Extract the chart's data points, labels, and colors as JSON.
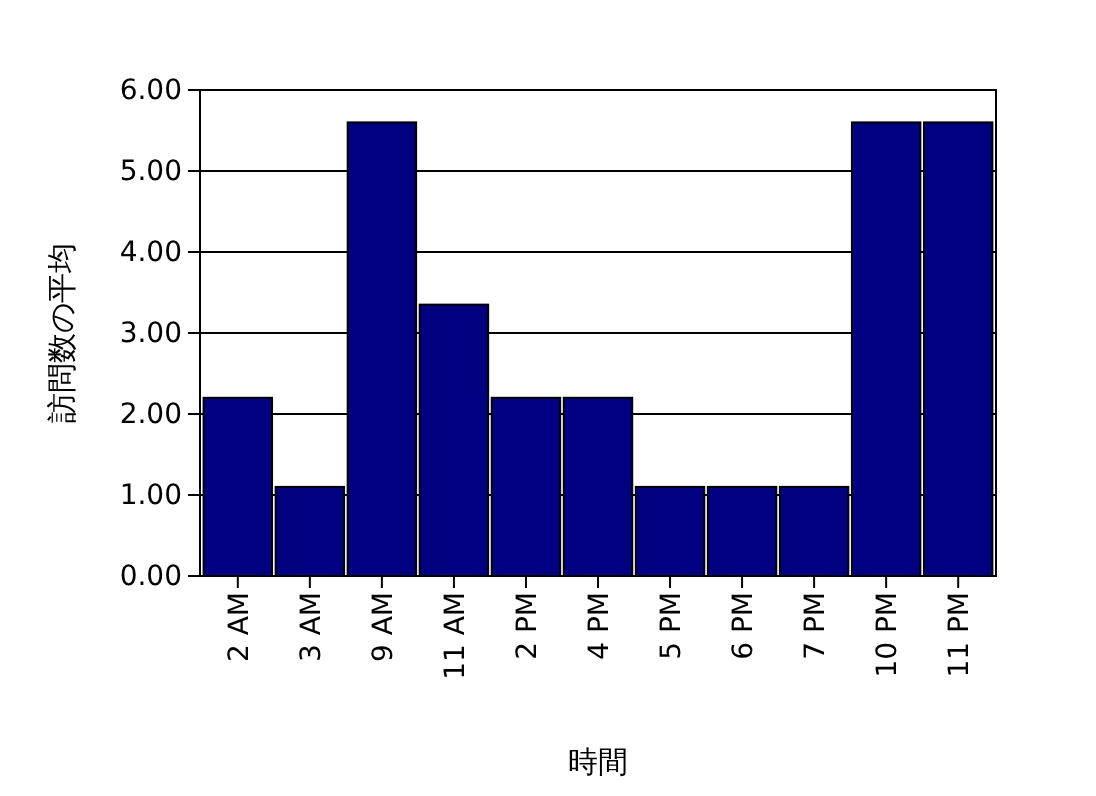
{
  "chart_data": {
    "type": "bar",
    "xlabel": "時間",
    "ylabel": "訪問数の平均",
    "categories": [
      "2 AM",
      "3 AM",
      "9 AM",
      "11 AM",
      "2 PM",
      "4 PM",
      "5 PM",
      "6 PM",
      "7 PM",
      "10 PM",
      "11 PM"
    ],
    "values": [
      2.2,
      1.1,
      5.6,
      3.35,
      2.2,
      2.2,
      1.1,
      1.1,
      1.1,
      5.6,
      5.6
    ],
    "color": "#000080",
    "ylim": [
      0,
      6
    ],
    "yticks": [
      {
        "value": 0,
        "label": "0.00"
      },
      {
        "value": 1,
        "label": "1.00"
      },
      {
        "value": 2,
        "label": "2.00"
      },
      {
        "value": 3,
        "label": "3.00"
      },
      {
        "value": 4,
        "label": "4.00"
      },
      {
        "value": 5,
        "label": "5.00"
      },
      {
        "value": 6,
        "label": "6.00"
      }
    ],
    "grid": "y"
  }
}
